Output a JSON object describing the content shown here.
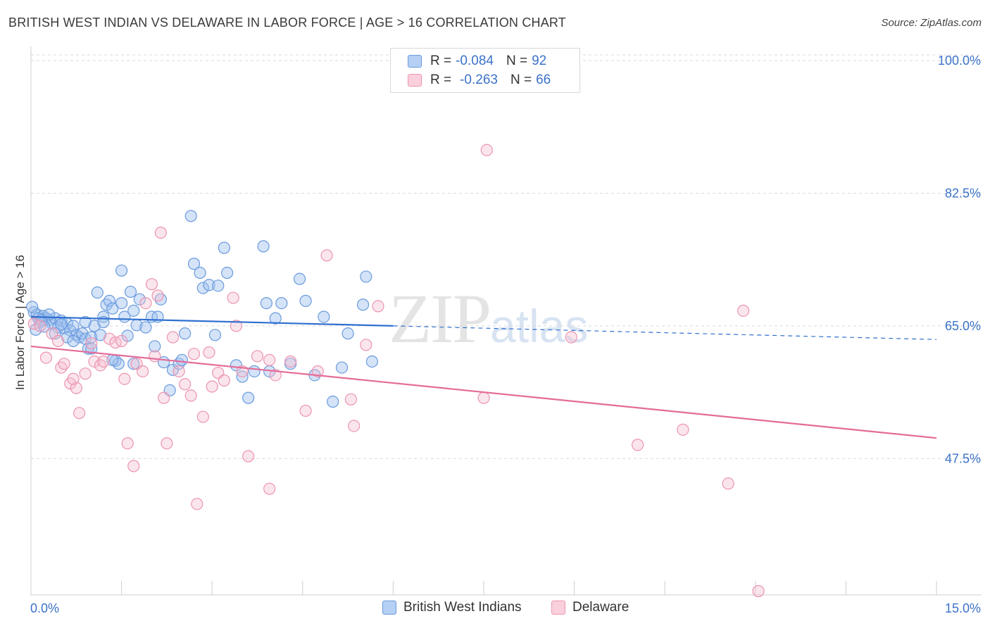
{
  "title": "BRITISH WEST INDIAN VS DELAWARE IN LABOR FORCE | AGE > 16 CORRELATION CHART",
  "source": "Source: ZipAtlas.com",
  "watermark": {
    "zip": "ZIP",
    "atlas": "atlas"
  },
  "legend": {
    "series1": {
      "r_label": "R =",
      "r_value": "-0.084",
      "n_label": "N =",
      "n_value": "92"
    },
    "series2": {
      "r_label": "R =",
      "r_value": "-0.263",
      "n_label": "N =",
      "n_value": "66"
    }
  },
  "bottom_legend": {
    "series1": "British West Indians",
    "series2": "Delaware"
  },
  "colors": {
    "blue_fill": "#9fc1ef",
    "blue_stroke": "#6a9bdc",
    "blue_line": "#2f6fd0",
    "pink_fill": "#f6bfd0",
    "pink_stroke": "#ec94b0",
    "pink_line": "#e46b98",
    "grid": "#d9d9d9",
    "tick_text": "#3b72c8"
  },
  "chart_data": {
    "type": "scatter",
    "title": "BRITISH WEST INDIAN VS DELAWARE IN LABOR FORCE | AGE > 16 CORRELATION CHART",
    "xlabel": "",
    "ylabel": "In Labor Force | Age > 16",
    "xlim": [
      0,
      15
    ],
    "ylim": [
      29.5,
      101.5
    ],
    "x_tick_labels": {
      "left": "0.0%",
      "right": "15.0%"
    },
    "y_ticks": [
      {
        "value": 100,
        "label": "100.0%"
      },
      {
        "value": 82.5,
        "label": "82.5%"
      },
      {
        "value": 65,
        "label": "65.0%"
      },
      {
        "value": 47.5,
        "label": "47.5%"
      }
    ],
    "series": [
      {
        "name": "British West Indians",
        "r": -0.084,
        "n": 92,
        "trend": {
          "x0": 0,
          "y0": 66.2,
          "x_solid_end": 6.0,
          "x1": 15,
          "y1": 63.2
        },
        "points": [
          [
            0.05,
            66.8
          ],
          [
            0.1,
            66.5
          ],
          [
            0.15,
            65.5
          ],
          [
            0.2,
            66.3
          ],
          [
            0.25,
            66.0
          ],
          [
            0.3,
            65.8
          ],
          [
            0.35,
            65.3
          ],
          [
            0.4,
            66.0
          ],
          [
            0.45,
            64.8
          ],
          [
            0.5,
            65.7
          ],
          [
            0.55,
            64.7
          ],
          [
            0.6,
            65.3
          ],
          [
            0.65,
            64.4
          ],
          [
            0.7,
            65.0
          ],
          [
            0.75,
            63.8
          ],
          [
            0.8,
            63.5
          ],
          [
            0.85,
            64.0
          ],
          [
            0.9,
            63.3
          ],
          [
            0.95,
            62.0
          ],
          [
            1.0,
            63.5
          ],
          [
            1.05,
            65.0
          ],
          [
            1.1,
            69.4
          ],
          [
            1.15,
            63.8
          ],
          [
            1.2,
            66.2
          ],
          [
            1.25,
            67.8
          ],
          [
            1.3,
            68.3
          ],
          [
            1.35,
            67.3
          ],
          [
            1.4,
            60.4
          ],
          [
            1.45,
            60.0
          ],
          [
            1.5,
            72.3
          ],
          [
            1.55,
            66.2
          ],
          [
            1.6,
            63.7
          ],
          [
            1.65,
            69.5
          ],
          [
            1.7,
            67.0
          ],
          [
            1.75,
            65.1
          ],
          [
            1.8,
            68.5
          ],
          [
            1.9,
            64.8
          ],
          [
            2.0,
            66.2
          ],
          [
            2.05,
            62.3
          ],
          [
            2.1,
            66.2
          ],
          [
            2.15,
            68.5
          ],
          [
            2.2,
            60.2
          ],
          [
            2.3,
            56.5
          ],
          [
            2.35,
            59.2
          ],
          [
            2.45,
            60.0
          ],
          [
            2.55,
            64.0
          ],
          [
            2.65,
            79.5
          ],
          [
            2.7,
            73.2
          ],
          [
            2.8,
            72.0
          ],
          [
            2.85,
            70.0
          ],
          [
            2.95,
            70.4
          ],
          [
            3.05,
            63.8
          ],
          [
            3.1,
            70.3
          ],
          [
            3.2,
            75.3
          ],
          [
            3.25,
            72.0
          ],
          [
            3.4,
            59.8
          ],
          [
            3.5,
            58.3
          ],
          [
            3.6,
            55.5
          ],
          [
            3.7,
            59.0
          ],
          [
            3.85,
            75.5
          ],
          [
            3.9,
            68.0
          ],
          [
            3.95,
            59.0
          ],
          [
            4.05,
            66.0
          ],
          [
            4.15,
            68.0
          ],
          [
            4.3,
            60.0
          ],
          [
            4.45,
            71.2
          ],
          [
            4.55,
            68.3
          ],
          [
            4.7,
            58.5
          ],
          [
            4.85,
            66.2
          ],
          [
            5.0,
            55.0
          ],
          [
            5.15,
            59.5
          ],
          [
            5.25,
            64.0
          ],
          [
            5.5,
            67.8
          ],
          [
            5.55,
            71.5
          ],
          [
            5.65,
            60.3
          ],
          [
            0.02,
            67.5
          ],
          [
            0.08,
            64.5
          ],
          [
            0.12,
            66.0
          ],
          [
            0.18,
            65.8
          ],
          [
            0.22,
            64.9
          ],
          [
            0.3,
            66.5
          ],
          [
            0.4,
            64.0
          ],
          [
            0.5,
            65.2
          ],
          [
            0.6,
            63.5
          ],
          [
            0.7,
            63.0
          ],
          [
            0.9,
            65.5
          ],
          [
            1.0,
            62.0
          ],
          [
            1.2,
            65.5
          ],
          [
            1.35,
            60.5
          ],
          [
            1.5,
            68.0
          ],
          [
            1.7,
            60.0
          ],
          [
            2.5,
            60.5
          ]
        ]
      },
      {
        "name": "Delaware",
        "r": -0.263,
        "n": 66,
        "trend": {
          "x0": 0,
          "y0": 62.3,
          "x1": 15,
          "y1": 50.2
        },
        "points": [
          [
            0.05,
            65.3
          ],
          [
            0.15,
            65.0
          ],
          [
            0.25,
            60.8
          ],
          [
            0.35,
            64.0
          ],
          [
            0.5,
            59.5
          ],
          [
            0.55,
            60.0
          ],
          [
            0.65,
            57.4
          ],
          [
            0.75,
            56.8
          ],
          [
            0.8,
            53.5
          ],
          [
            0.9,
            58.7
          ],
          [
            1.0,
            62.7
          ],
          [
            1.05,
            60.3
          ],
          [
            1.15,
            59.8
          ],
          [
            1.2,
            60.3
          ],
          [
            1.3,
            63.3
          ],
          [
            1.4,
            62.8
          ],
          [
            1.5,
            63.0
          ],
          [
            1.6,
            49.5
          ],
          [
            1.7,
            46.5
          ],
          [
            1.75,
            60.0
          ],
          [
            1.85,
            59.0
          ],
          [
            1.9,
            68.0
          ],
          [
            2.0,
            70.5
          ],
          [
            2.1,
            69.0
          ],
          [
            2.15,
            77.3
          ],
          [
            2.25,
            49.5
          ],
          [
            2.35,
            63.5
          ],
          [
            2.45,
            59.0
          ],
          [
            2.55,
            57.3
          ],
          [
            2.65,
            55.8
          ],
          [
            2.7,
            61.3
          ],
          [
            2.75,
            41.5
          ],
          [
            2.85,
            53.0
          ],
          [
            2.95,
            61.5
          ],
          [
            3.0,
            57.0
          ],
          [
            3.1,
            58.8
          ],
          [
            3.2,
            57.8
          ],
          [
            3.35,
            68.7
          ],
          [
            3.4,
            65.0
          ],
          [
            3.5,
            59.0
          ],
          [
            3.6,
            47.8
          ],
          [
            3.75,
            61.0
          ],
          [
            3.95,
            60.5
          ],
          [
            3.95,
            43.5
          ],
          [
            4.05,
            58.5
          ],
          [
            4.3,
            60.3
          ],
          [
            4.55,
            53.8
          ],
          [
            4.75,
            59.0
          ],
          [
            4.9,
            74.3
          ],
          [
            5.3,
            55.3
          ],
          [
            5.35,
            51.8
          ],
          [
            5.55,
            62.5
          ],
          [
            5.75,
            67.6
          ],
          [
            7.5,
            55.5
          ],
          [
            7.55,
            88.2
          ],
          [
            8.95,
            63.5
          ],
          [
            10.05,
            49.3
          ],
          [
            10.8,
            51.3
          ],
          [
            11.55,
            44.2
          ],
          [
            11.8,
            67.0
          ],
          [
            12.05,
            30.0
          ],
          [
            0.45,
            63.0
          ],
          [
            0.7,
            58.0
          ],
          [
            1.55,
            58.0
          ],
          [
            2.05,
            61.0
          ],
          [
            2.2,
            55.5
          ]
        ]
      }
    ]
  }
}
